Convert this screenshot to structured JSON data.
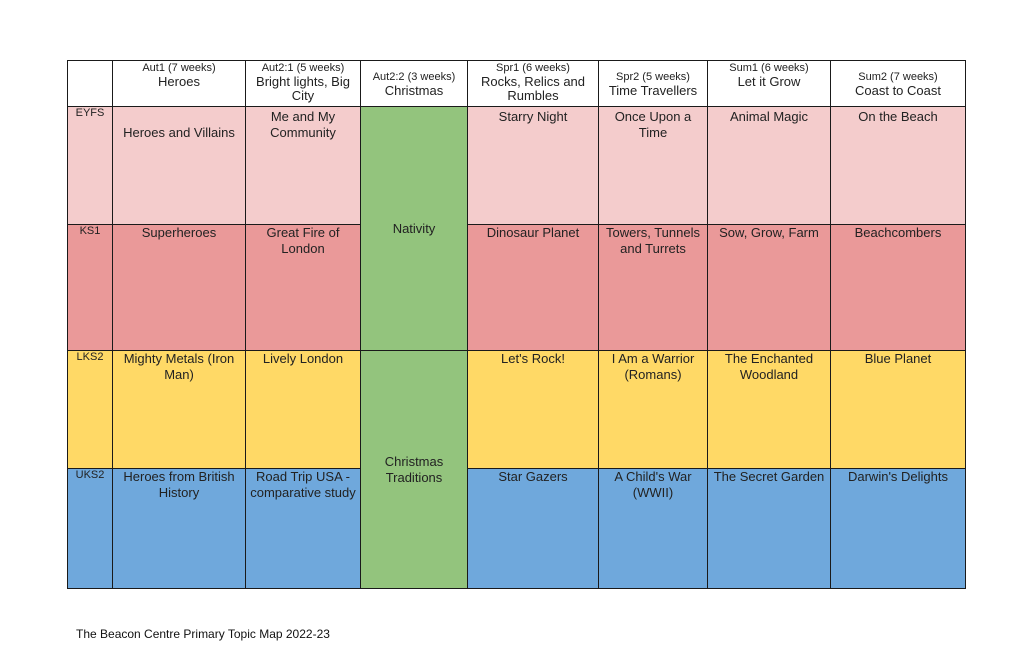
{
  "terms": [
    {
      "weeks": "Aut1 (7 weeks)",
      "topic": "Heroes"
    },
    {
      "weeks": "Aut2:1  (5 weeks)",
      "topic": "Bright lights, Big City"
    },
    {
      "weeks": "Aut2:2 (3 weeks)",
      "topic": "Christmas"
    },
    {
      "weeks": "Spr1 (6 weeks)",
      "topic": "Rocks, Relics and Rumbles"
    },
    {
      "weeks": "Spr2 (5 weeks)",
      "topic": "Time Travellers"
    },
    {
      "weeks": "Sum1 (6 weeks)",
      "topic": "Let it Grow"
    },
    {
      "weeks": "Sum2 (7 weeks)",
      "topic": "Coast to Coast"
    }
  ],
  "stages": [
    {
      "name": "EYFS",
      "color": "#f4cccc",
      "topics": [
        "Heroes and Villains",
        "Me and My Community",
        "Starry Night",
        "Once Upon a Time",
        "Animal Magic",
        "On the Beach"
      ]
    },
    {
      "name": "KS1",
      "color": "#ea9999",
      "topics": [
        "Superheroes",
        "Great Fire of London",
        "Dinosaur Planet",
        "Towers, Tunnels and Turrets",
        "Sow, Grow, Farm",
        "Beachcombers"
      ]
    },
    {
      "name": "LKS2",
      "color": "#ffd966",
      "topics": [
        "Mighty Metals (Iron Man)",
        "Lively London",
        "Let's Rock!",
        "I Am a Warrior (Romans)",
        "The Enchanted Woodland",
        "Blue Planet"
      ]
    },
    {
      "name": "UKS2",
      "color": "#6fa8dc",
      "topics": [
        "Heroes from British History",
        "Road Trip USA - comparative study",
        "Star Gazers",
        "A Child's War (WWII)",
        "The Secret Garden",
        "Darwin's Delights"
      ]
    }
  ],
  "christmas_blocks": [
    {
      "label": "Nativity",
      "color": "#93c47d"
    },
    {
      "label": "Christmas Traditions",
      "color": "#93c47d"
    }
  ],
  "footer": "The Beacon Centre Primary Topic Map 2022-23"
}
